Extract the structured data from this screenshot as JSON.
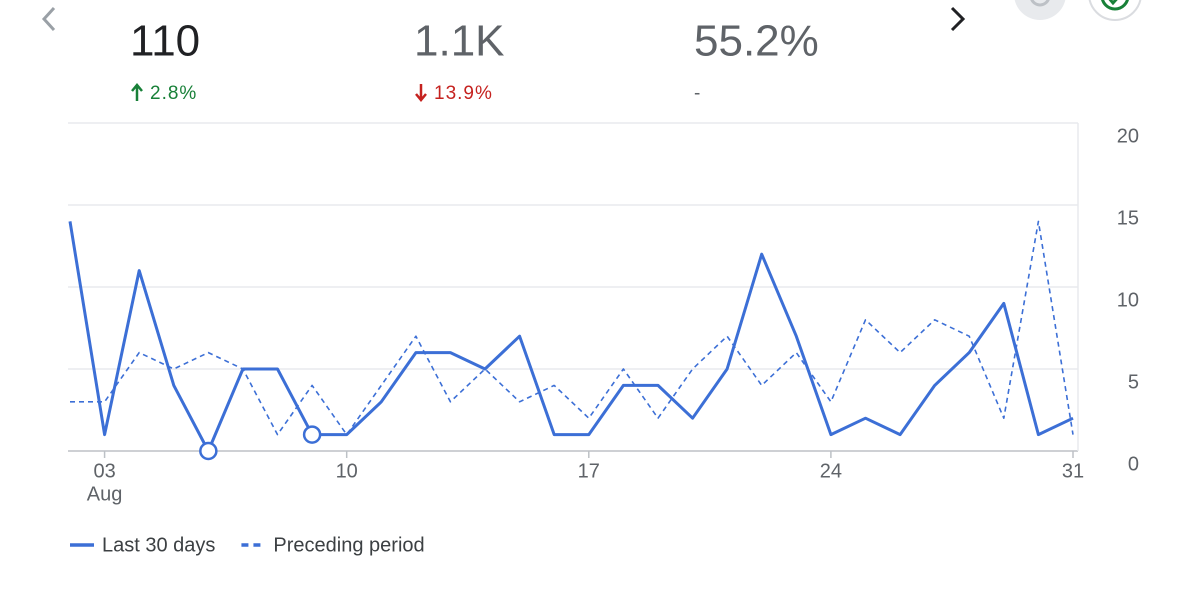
{
  "metrics": [
    {
      "value": "110",
      "change": "2.8%",
      "direction": "up"
    },
    {
      "value": "1.1K",
      "change": "13.9%",
      "direction": "down"
    },
    {
      "value": "55.2%",
      "change": "-",
      "direction": "none"
    }
  ],
  "chart_data": {
    "type": "line",
    "categories": [
      null,
      "03",
      null,
      null,
      null,
      null,
      null,
      null,
      "10",
      null,
      null,
      null,
      null,
      null,
      null,
      "17",
      null,
      null,
      null,
      null,
      null,
      null,
      "24",
      null,
      null,
      null,
      null,
      null,
      null,
      "31"
    ],
    "month_label": "Aug",
    "series": [
      {
        "name": "Last 30 days",
        "color": "#3c6fd6",
        "style": "solid",
        "values": [
          14,
          1,
          11,
          4,
          0,
          5,
          5,
          1,
          1,
          3,
          6,
          6,
          5,
          7,
          1,
          1,
          4,
          4,
          2,
          5,
          12,
          7,
          1,
          2,
          1,
          4,
          6,
          9,
          1,
          2
        ],
        "highlight_points": [
          4,
          7
        ]
      },
      {
        "name": "Preceding period",
        "color": "#3c6fd6",
        "style": "dashed",
        "values": [
          3,
          3,
          6,
          5,
          6,
          5,
          1,
          4,
          1,
          4,
          7,
          3,
          5,
          3,
          4,
          2,
          5,
          2,
          5,
          7,
          4,
          6,
          3,
          8,
          6,
          8,
          7,
          2,
          14,
          1
        ]
      }
    ],
    "ylim": [
      0,
      20
    ],
    "yticks": [
      0,
      5,
      10,
      15,
      20
    ],
    "grid": true,
    "y_axis_side": "right",
    "legend": "bottom-left"
  }
}
